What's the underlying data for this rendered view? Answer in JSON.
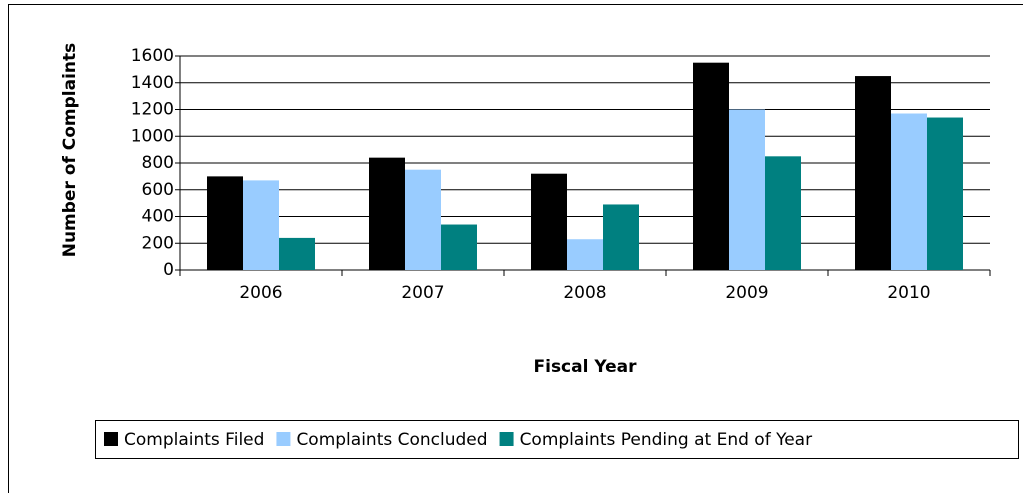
{
  "chart_data": {
    "type": "bar",
    "y_label": "Number of Complaints",
    "x_label": "Fiscal Year",
    "categories": [
      "2006",
      "2007",
      "2008",
      "2009",
      "2010"
    ],
    "series": [
      {
        "name": "Complaints Filed",
        "color": "#000000",
        "values": [
          700,
          840,
          720,
          1550,
          1450
        ]
      },
      {
        "name": "Complaints Concluded",
        "color": "#99ccff",
        "values": [
          670,
          750,
          230,
          1200,
          1170
        ]
      },
      {
        "name": "Complaints Pending at End of Year",
        "color": "#008080",
        "values": [
          240,
          340,
          490,
          850,
          1140
        ]
      }
    ],
    "ylim": [
      0,
      1600
    ],
    "yticks": [
      0,
      200,
      400,
      600,
      800,
      1000,
      1200,
      1400,
      1600
    ],
    "grid": true
  }
}
